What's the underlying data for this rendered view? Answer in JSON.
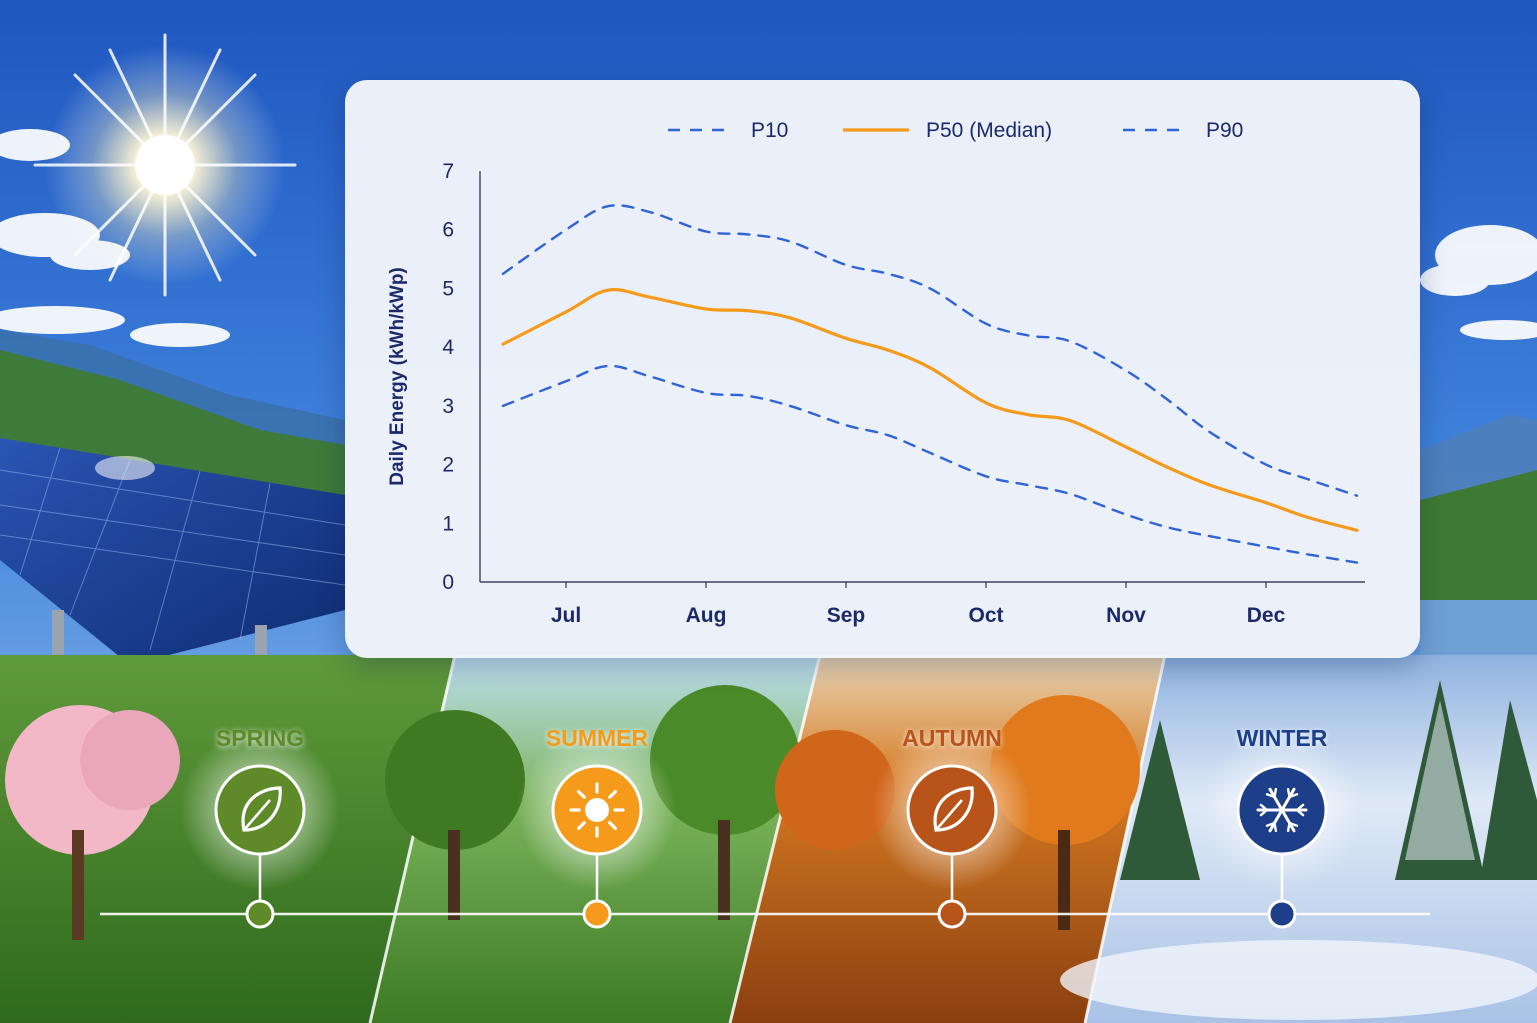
{
  "chart_data": {
    "type": "line",
    "title": "",
    "ylabel": "Daily Energy (kWh/kWp)",
    "xlabel": "",
    "x_ticks": [
      "Jul",
      "Aug",
      "Sep",
      "Oct",
      "Nov",
      "Dec"
    ],
    "y_ticks": [
      "0",
      "1",
      "2",
      "3",
      "4",
      "5",
      "6",
      "7"
    ],
    "ylim": [
      0,
      7
    ],
    "xlim": [
      0,
      5.6
    ],
    "x": [
      -0.45,
      0.0,
      0.3,
      0.6,
      1.0,
      1.3,
      1.6,
      2.0,
      2.3,
      2.6,
      3.0,
      3.3,
      3.6,
      4.0,
      4.3,
      4.6,
      5.0,
      5.3,
      5.65
    ],
    "legend_position": "top",
    "series": [
      {
        "name": "P10",
        "color": "#2f63d8",
        "style": "dashed",
        "values": [
          5.25,
          6.0,
          6.4,
          6.3,
          5.97,
          5.92,
          5.8,
          5.4,
          5.25,
          5.0,
          4.4,
          4.2,
          4.1,
          3.6,
          3.1,
          2.55,
          2.0,
          1.75,
          1.47
        ]
      },
      {
        "name": "P50 (Median)",
        "color": "#f59a1b",
        "style": "solid",
        "values": [
          4.05,
          4.6,
          4.97,
          4.85,
          4.65,
          4.62,
          4.5,
          4.15,
          3.95,
          3.65,
          3.05,
          2.85,
          2.75,
          2.3,
          1.95,
          1.65,
          1.35,
          1.1,
          0.88
        ]
      },
      {
        "name": "P90",
        "color": "#2f63d8",
        "style": "dashed",
        "values": [
          3.0,
          3.42,
          3.68,
          3.5,
          3.22,
          3.17,
          3.0,
          2.67,
          2.5,
          2.2,
          1.8,
          1.65,
          1.5,
          1.15,
          0.93,
          0.78,
          0.6,
          0.47,
          0.33
        ]
      }
    ]
  },
  "seasons": [
    {
      "label": "SPRING",
      "color": "#5e8a2a",
      "icon": "leaf-icon"
    },
    {
      "label": "SUMMER",
      "color": "#f59a1b",
      "icon": "sun-icon"
    },
    {
      "label": "AUTUMN",
      "color": "#b8541a",
      "icon": "leaf-icon"
    },
    {
      "label": "WINTER",
      "color": "#1d3f8a",
      "icon": "snowflake-icon"
    }
  ]
}
